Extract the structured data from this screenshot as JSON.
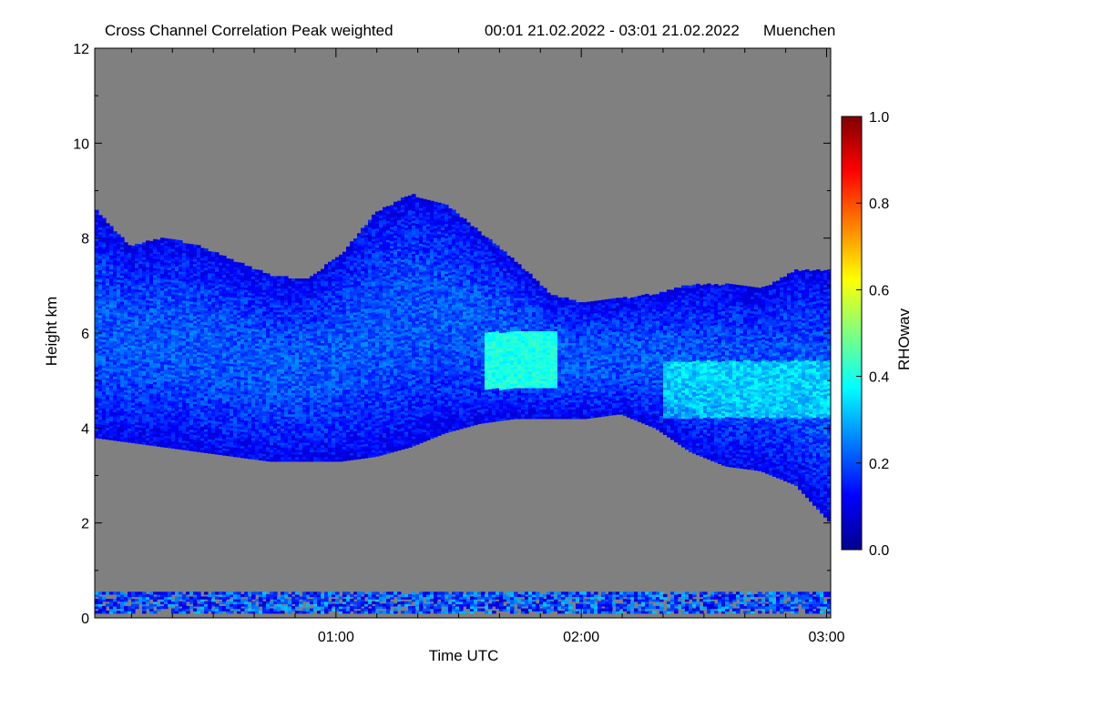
{
  "chart_data": {
    "type": "heatmap",
    "title": "Cross Channel Correlation Peak weighted",
    "time_range": "00:01 21.02.2022 - 03:01 21.02.2022",
    "location": "Muenchen",
    "xlabel": "Time UTC",
    "ylabel": "Height km",
    "x_range": [
      "00:01",
      "03:01"
    ],
    "ylim": [
      0,
      12
    ],
    "x_ticks": [
      "01:00",
      "02:00",
      "03:00"
    ],
    "y_ticks": [
      0,
      2,
      4,
      6,
      8,
      10,
      12
    ],
    "colorbar": {
      "label": "RHOwav",
      "range": [
        0.0,
        1.0
      ],
      "ticks": [
        0.0,
        0.2,
        0.4,
        0.6,
        0.8,
        1.0
      ],
      "colormap": "jet",
      "background_color": "#808080"
    },
    "layers": [
      {
        "name": "mid-level layer",
        "time_start": "00:01",
        "time_end": "03:01",
        "base_km": [
          3.8,
          3.7,
          3.6,
          3.5,
          3.4,
          3.3,
          3.3,
          3.3,
          3.4,
          3.6,
          3.9,
          4.1,
          4.2,
          4.2,
          4.2,
          4.3,
          4.0,
          3.5,
          3.2,
          3.1,
          2.8,
          2.0
        ],
        "top_km": [
          8.6,
          7.8,
          8.0,
          7.8,
          7.5,
          7.2,
          7.1,
          7.6,
          8.5,
          8.9,
          8.7,
          8.1,
          7.5,
          6.8,
          6.6,
          6.7,
          6.8,
          7.0,
          7.0,
          6.9,
          7.3,
          7.3
        ],
        "typical_value": 0.2,
        "max_value": 0.45
      },
      {
        "name": "enhanced patch",
        "time": "01:45",
        "height_km": [
          4.8,
          6.0
        ],
        "value": 0.4
      },
      {
        "name": "near-surface layer",
        "height_km": [
          0.1,
          0.5
        ],
        "value": 0.2
      }
    ]
  }
}
